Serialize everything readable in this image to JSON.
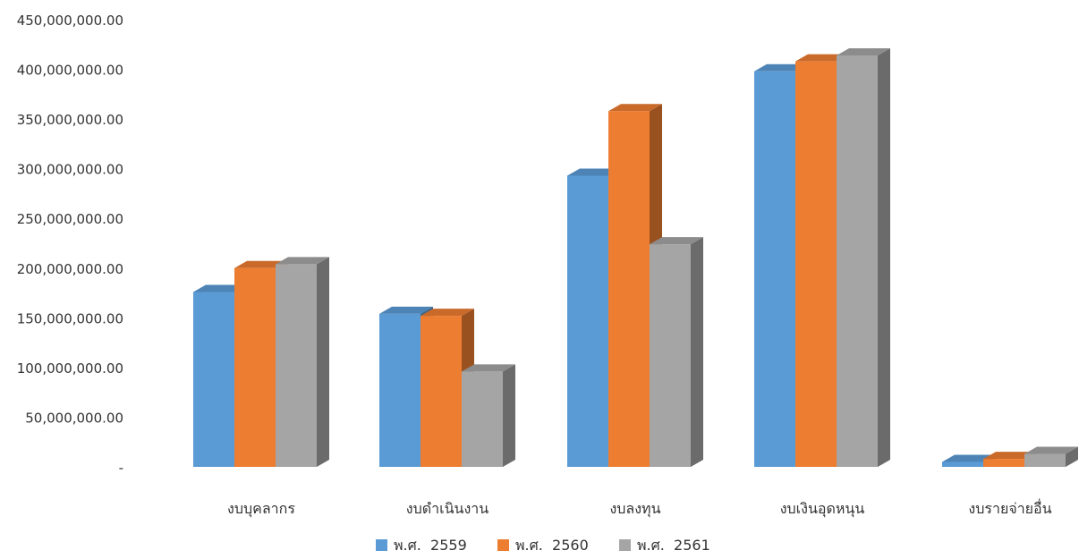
{
  "chart_data": {
    "type": "bar",
    "categories": [
      "งบบุคลากร",
      "งบดำเนินงาน",
      "งบลงทุน",
      "งบเงินอุดหนุน",
      "งบรายจ่ายอื่น"
    ],
    "series": [
      {
        "name": "พ.ศ.  2559",
        "color": "#5b9bd5",
        "values": [
          176000000,
          154000000,
          293000000,
          398000000,
          5000000
        ]
      },
      {
        "name": "พ.ศ.  2560",
        "color": "#ed7d31",
        "values": [
          200000000,
          152000000,
          358000000,
          408000000,
          8000000
        ]
      },
      {
        "name": "พ.ศ.  2561",
        "color": "#a5a5a5",
        "values": [
          204000000,
          96000000,
          224000000,
          414000000,
          13000000
        ]
      }
    ],
    "ytick_labels": [
      "-",
      "50,000,000.00",
      "100,000,000.00",
      "150,000,000.00",
      "200,000,000.00",
      "250,000,000.00",
      "300,000,000.00",
      "350,000,000.00",
      "400,000,000.00",
      "450,000,000.00"
    ],
    "ylim": [
      0,
      450000000
    ],
    "grid": false,
    "legend_position": "bottom",
    "style": "3d-column"
  }
}
